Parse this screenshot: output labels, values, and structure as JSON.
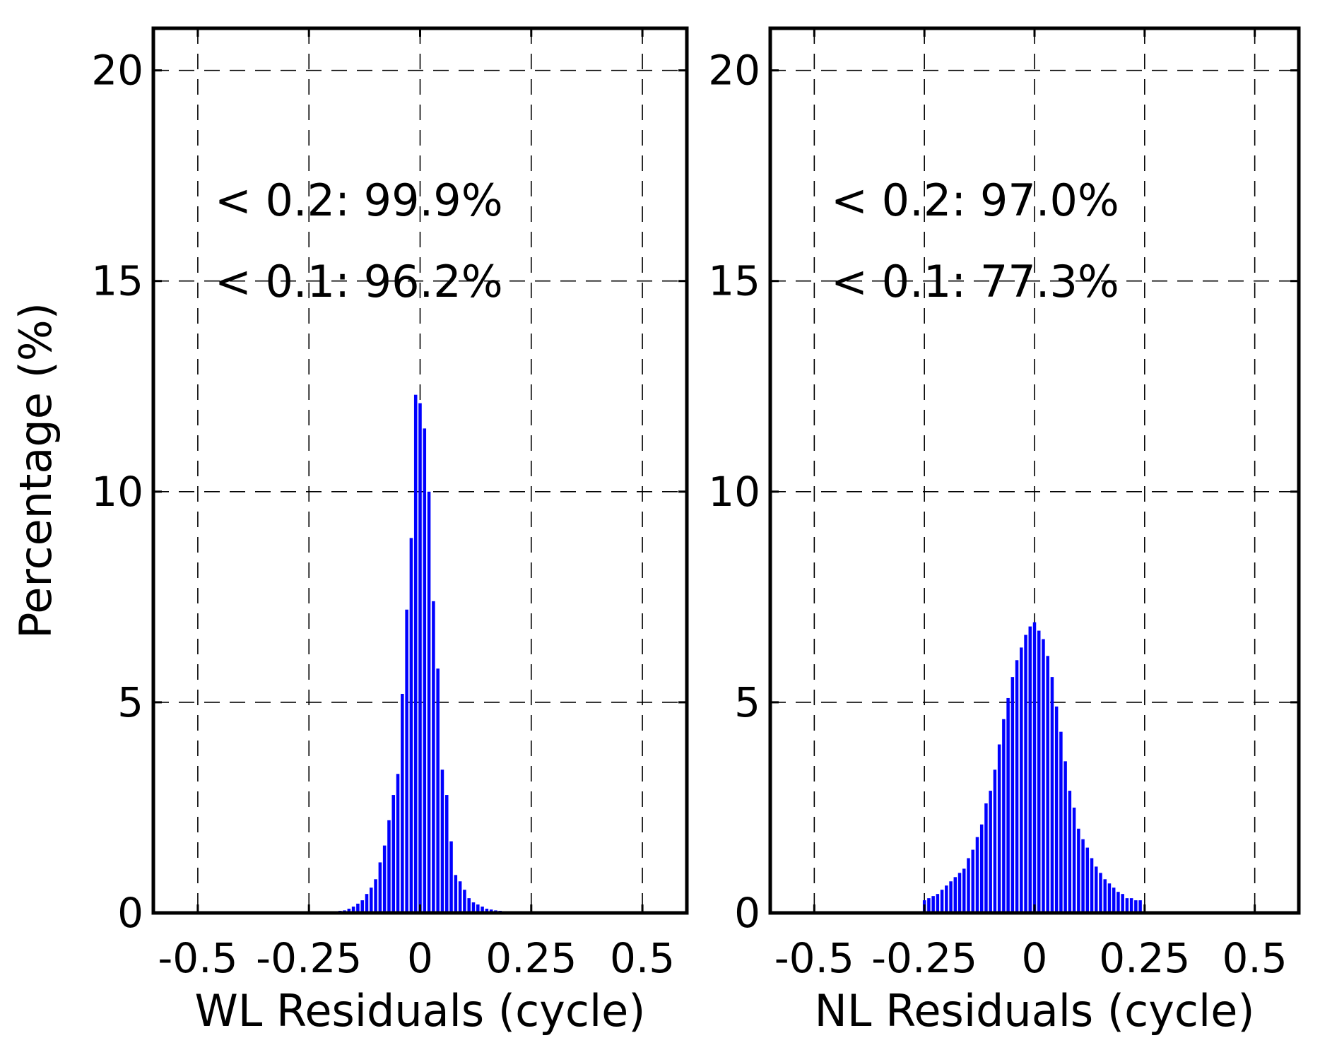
{
  "chart_data": [
    {
      "type": "bar",
      "xlabel": "WL Residuals (cycle)",
      "ylabel": "Percentage (%)",
      "xlim": [
        -0.6,
        0.6
      ],
      "ylim": [
        0,
        21
      ],
      "xticks": [
        -0.5,
        -0.25,
        0,
        0.25,
        0.5
      ],
      "xtick_labels": [
        "-0.5",
        "-0.25",
        "0",
        "0.25",
        "0.5"
      ],
      "yticks": [
        0,
        5,
        10,
        15,
        20
      ],
      "ytick_labels": [
        "0",
        "5",
        "10",
        "15",
        "20"
      ],
      "grid": true,
      "bar_color": "#0000ff",
      "bin_width": 0.01,
      "x": [
        -0.22,
        -0.21,
        -0.2,
        -0.19,
        -0.18,
        -0.17,
        -0.16,
        -0.15,
        -0.14,
        -0.13,
        -0.12,
        -0.11,
        -0.1,
        -0.09,
        -0.08,
        -0.07,
        -0.06,
        -0.05,
        -0.04,
        -0.03,
        -0.02,
        -0.01,
        0,
        0.01,
        0.02,
        0.03,
        0.04,
        0.05,
        0.06,
        0.07,
        0.08,
        0.09,
        0.1,
        0.11,
        0.12,
        0.13,
        0.14,
        0.15,
        0.16,
        0.17,
        0.18,
        0.19,
        0.2,
        0.21,
        0.22,
        0.23,
        0.24
      ],
      "values": [
        0.02,
        0.03,
        0.03,
        0.04,
        0.05,
        0.06,
        0.1,
        0.15,
        0.22,
        0.3,
        0.45,
        0.6,
        0.8,
        1.2,
        1.6,
        2.2,
        2.8,
        3.3,
        5.2,
        7.2,
        8.9,
        12.3,
        12.1,
        11.5,
        10.0,
        7.4,
        5.8,
        3.4,
        2.8,
        1.7,
        0.9,
        0.75,
        0.55,
        0.35,
        0.25,
        0.2,
        0.15,
        0.1,
        0.08,
        0.06,
        0.05,
        0.04,
        0.03,
        0.03,
        0.02,
        0.02,
        0.02
      ],
      "annotations": [
        "< 0.2:  99.9%",
        "< 0.1:  96.2%"
      ]
    },
    {
      "type": "bar",
      "xlabel": "NL Residuals (cycle)",
      "ylabel": "",
      "xlim": [
        -0.6,
        0.6
      ],
      "ylim": [
        0,
        21
      ],
      "xticks": [
        -0.5,
        -0.25,
        0,
        0.25,
        0.5
      ],
      "xtick_labels": [
        "-0.5",
        "-0.25",
        "0",
        "0.25",
        "0.5"
      ],
      "yticks": [
        0,
        5,
        10,
        15,
        20
      ],
      "ytick_labels": [
        "0",
        "5",
        "10",
        "15",
        "20"
      ],
      "grid": true,
      "bar_color": "#0000ff",
      "bin_width": 0.01,
      "x": [
        -0.25,
        -0.24,
        -0.23,
        -0.22,
        -0.21,
        -0.2,
        -0.19,
        -0.18,
        -0.17,
        -0.16,
        -0.15,
        -0.14,
        -0.13,
        -0.12,
        -0.11,
        -0.1,
        -0.09,
        -0.08,
        -0.07,
        -0.06,
        -0.05,
        -0.04,
        -0.03,
        -0.02,
        -0.01,
        0,
        0.01,
        0.02,
        0.03,
        0.04,
        0.05,
        0.06,
        0.07,
        0.08,
        0.09,
        0.1,
        0.11,
        0.12,
        0.13,
        0.14,
        0.15,
        0.16,
        0.17,
        0.18,
        0.19,
        0.2,
        0.21,
        0.22,
        0.23,
        0.24
      ],
      "values": [
        0.3,
        0.35,
        0.4,
        0.45,
        0.55,
        0.65,
        0.75,
        0.85,
        0.95,
        1.05,
        1.3,
        1.5,
        1.8,
        2.1,
        2.6,
        2.9,
        3.4,
        4.0,
        4.6,
        5.1,
        5.6,
        6.0,
        6.3,
        6.6,
        6.8,
        6.9,
        6.7,
        6.5,
        6.1,
        5.6,
        4.9,
        4.3,
        3.6,
        2.9,
        2.5,
        2.0,
        1.75,
        1.55,
        1.3,
        1.1,
        0.95,
        0.8,
        0.7,
        0.6,
        0.5,
        0.45,
        0.35,
        0.35,
        0.3,
        0.3
      ],
      "annotations": [
        "< 0.2:  97.0%",
        "< 0.1:  77.3%"
      ]
    }
  ]
}
